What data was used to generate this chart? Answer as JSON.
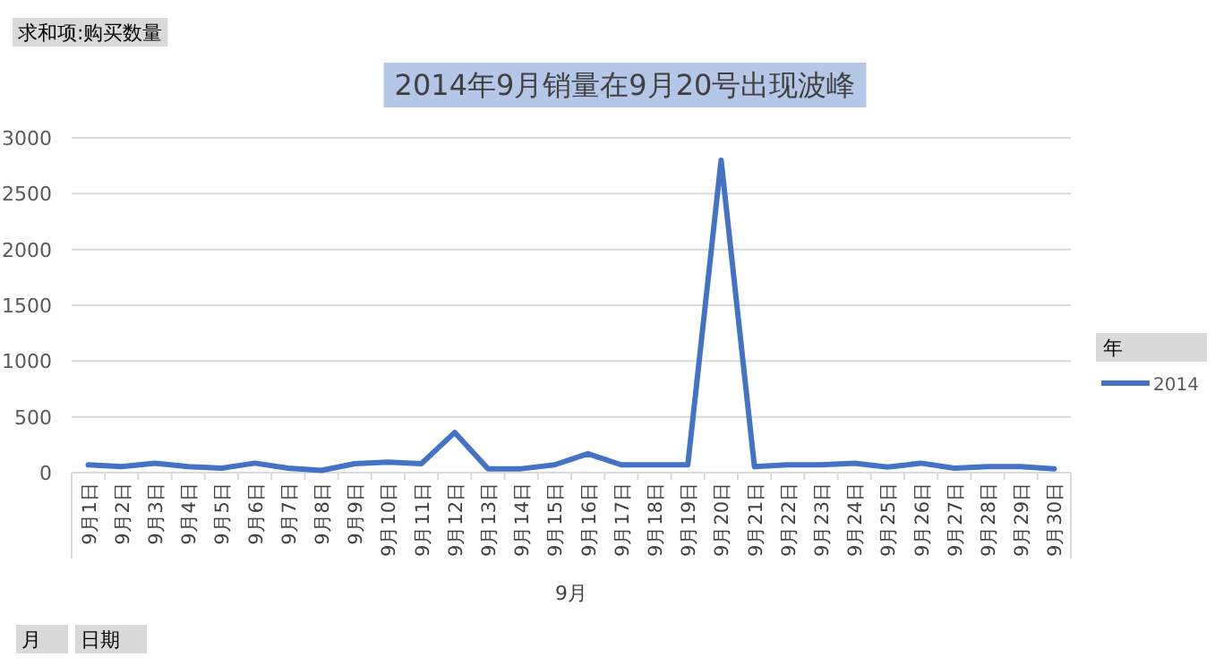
{
  "chart_data": {
    "type": "line",
    "title": "2014年9月销量在9月20号出现波峰",
    "xlabel": "9月",
    "legend_title": "年",
    "annotations": [
      "求和项:购买数量",
      "月",
      "日期"
    ],
    "categories": [
      "9月1日",
      "9月2日",
      "9月3日",
      "9月4日",
      "9月5日",
      "9月6日",
      "9月7日",
      "9月8日",
      "9月9日",
      "9月10日",
      "9月11日",
      "9月12日",
      "9月13日",
      "9月14日",
      "9月15日",
      "9月16日",
      "9月17日",
      "9月18日",
      "9月19日",
      "9月20日",
      "9月21日",
      "9月22日",
      "9月23日",
      "9月24日",
      "9月25日",
      "9月26日",
      "9月27日",
      "9月28日",
      "9月29日",
      "9月30日"
    ],
    "series": [
      {
        "name": "2014",
        "color": "#4472c4",
        "values": [
          70,
          55,
          85,
          55,
          40,
          85,
          40,
          20,
          80,
          95,
          80,
          360,
          35,
          35,
          70,
          170,
          70,
          70,
          70,
          2800,
          55,
          70,
          70,
          85,
          50,
          85,
          40,
          55,
          55,
          35
        ]
      }
    ],
    "ylim": [
      0,
      3000
    ],
    "yticks": [
      0,
      500,
      1000,
      1500,
      2000,
      2500,
      3000
    ],
    "grid": "y",
    "legend": "right",
    "marker": "none",
    "line_style": "solid"
  }
}
